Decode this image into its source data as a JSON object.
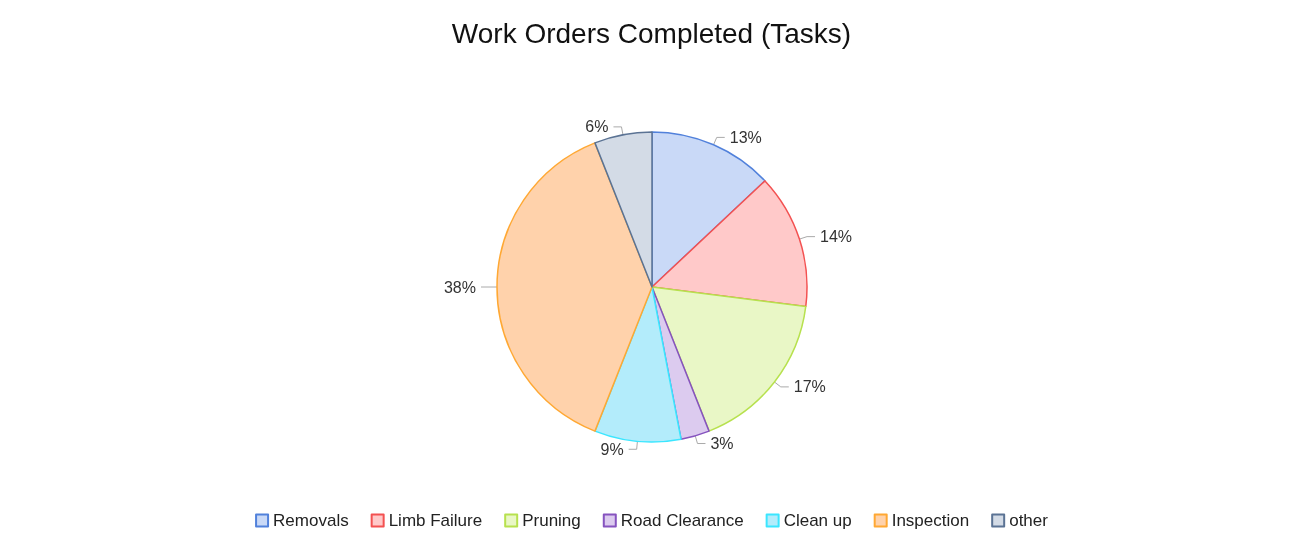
{
  "chart_data": {
    "type": "pie",
    "title": "Work Orders Completed (Tasks)",
    "categories": [
      "Removals",
      "Limb Failure",
      "Pruning",
      "Road Clearance",
      "Clean up",
      "Inspection",
      "other"
    ],
    "values": [
      13,
      14,
      17,
      3,
      9,
      38,
      6
    ],
    "colors": [
      "#c9d9f7",
      "#ffc9c9",
      "#e9f7c6",
      "#dccbef",
      "#b3ecfb",
      "#ffd2ab",
      "#d3dbe6"
    ],
    "value_labels": [
      "13%",
      "14%",
      "17%",
      "3%",
      "9%",
      "38%",
      "6%"
    ],
    "legend": "bottom"
  }
}
